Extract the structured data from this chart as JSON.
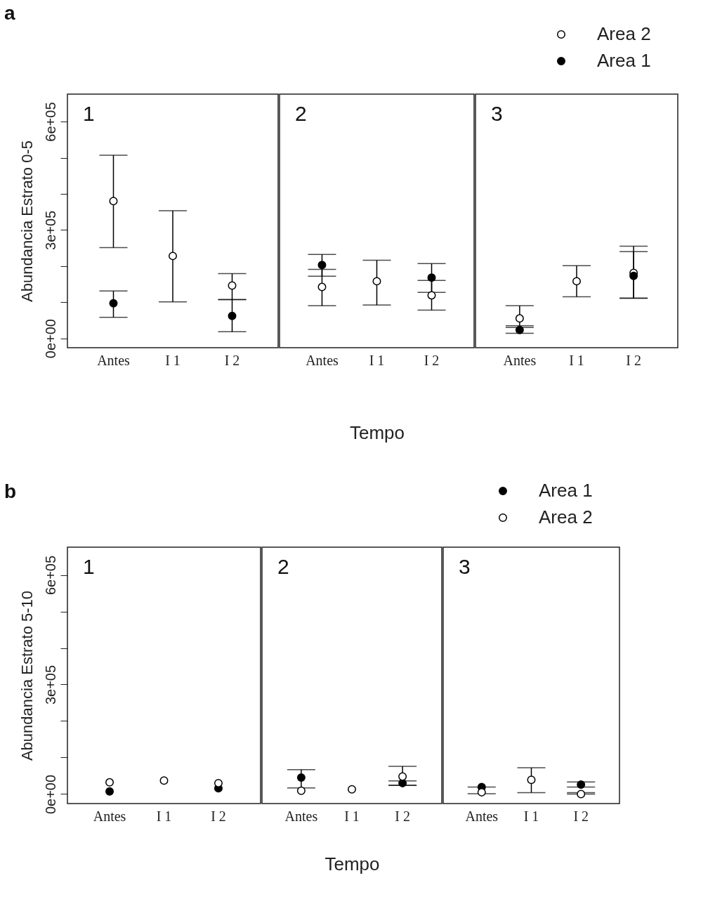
{
  "chart_data": [
    {
      "type": "scatter",
      "title": "1",
      "annotations": [
        "a"
      ],
      "ylabel": "Abundancia Estrato 0-5",
      "categories": [
        "Antes",
        "I 1",
        "I 2"
      ],
      "marker": "circle",
      "ylim": [
        -26000,
        676000
      ],
      "yticks": [
        {
          "value": 0,
          "label": "0e+00"
        },
        {
          "value": 100000,
          "label": null
        },
        {
          "value": 200000,
          "label": null
        },
        {
          "value": 300000,
          "label": "3e+05"
        },
        {
          "value": 400000,
          "label": null
        },
        {
          "value": 500000,
          "label": null
        },
        {
          "value": 600000,
          "label": "6e+05"
        }
      ],
      "series": [
        {
          "color": "#ffffff",
          "values": [
            380000,
            228000,
            146000
          ],
          "errors": [
            [
              251000,
              507000
            ],
            [
              101000,
              353000
            ],
            [
              107000,
              179000
            ]
          ]
        },
        {
          "color": "#000000",
          "values": [
            97000,
            null,
            62000
          ],
          "errors": [
            [
              58000,
              131000
            ],
            null,
            [
              18000,
              107000
            ]
          ]
        }
      ]
    },
    {
      "type": "scatter",
      "title": "2",
      "xlabel": "Tempo",
      "categories": [
        "Antes",
        "I 1",
        "I 2"
      ],
      "marker": "circle",
      "ylim": [
        -26000,
        676000
      ],
      "tick_labels": "x",
      "series": [
        {
          "color": "#ffffff",
          "values": [
            142000,
            158000,
            119000
          ],
          "errors": [
            [
              90000,
              191000
            ],
            [
              92000,
              216000
            ],
            [
              78000,
              160000
            ]
          ]
        },
        {
          "color": "#000000",
          "values": [
            203000,
            null,
            168000
          ],
          "errors": [
            [
              172000,
              232000
            ],
            null,
            [
              127000,
              207000
            ]
          ]
        }
      ]
    },
    {
      "type": "scatter",
      "title": "3",
      "categories": [
        "Antes",
        "I 1",
        "I 2"
      ],
      "marker": "circle",
      "ylim": [
        -26000,
        676000
      ],
      "tick_labels": "x",
      "legend": "top right",
      "series": [
        {
          "name": "Area 2",
          "color": "#ffffff",
          "values": [
            55000,
            158000,
            181000
          ],
          "errors": [
            [
              35000,
              90000
            ],
            [
              115000,
              201000
            ],
            [
              111000,
              255000
            ]
          ]
        },
        {
          "name": "Area 1",
          "color": "#000000",
          "values": [
            23000,
            null,
            173000
          ],
          "errors": [
            [
              14000,
              30000
            ],
            null,
            [
              111000,
              240000
            ]
          ]
        }
      ]
    },
    {
      "type": "scatter",
      "title": "1",
      "annotations": [
        "b"
      ],
      "ylabel": "Abundancia Estrato 5-10",
      "categories": [
        "Antes",
        "I 1",
        "I 2"
      ],
      "marker": "circle",
      "ylim": [
        -26000,
        676000
      ],
      "yticks": [
        {
          "value": 0,
          "label": "0e+00"
        },
        {
          "value": 100000,
          "label": null
        },
        {
          "value": 200000,
          "label": null
        },
        {
          "value": 300000,
          "label": "3e+05"
        },
        {
          "value": 400000,
          "label": null
        },
        {
          "value": 500000,
          "label": null
        },
        {
          "value": 600000,
          "label": "6e+05"
        }
      ],
      "series": [
        {
          "color": "#000000",
          "values": [
            7000,
            null,
            16000
          ]
        },
        {
          "color": "#ffffff",
          "values": [
            32000,
            37000,
            30000
          ],
          "errors": [
            null,
            null,
            null
          ]
        }
      ]
    },
    {
      "type": "scatter",
      "title": "2",
      "xlabel": "Tempo",
      "categories": [
        "Antes",
        "I 1",
        "I 2"
      ],
      "marker": "circle",
      "ylim": [
        -26000,
        676000
      ],
      "tick_labels": "x",
      "series": [
        {
          "color": "#000000",
          "values": [
            45000,
            null,
            30000
          ],
          "errors": [
            [
              17000,
              67000
            ],
            null,
            [
              24000,
              36000
            ]
          ]
        },
        {
          "color": "#ffffff",
          "values": [
            9000,
            13000,
            48000
          ],
          "errors": [
            null,
            null,
            [
              24000,
              76000
            ]
          ]
        }
      ]
    },
    {
      "type": "scatter",
      "title": "3",
      "categories": [
        "Antes",
        "I 1",
        "I 2"
      ],
      "marker": "circle",
      "ylim": [
        -26000,
        676000
      ],
      "tick_labels": "x",
      "legend": "top right",
      "series": [
        {
          "name": "Area 1",
          "color": "#000000",
          "values": [
            19000,
            null,
            26000
          ],
          "errors": [
            null,
            null,
            [
              19000,
              33000
            ]
          ]
        },
        {
          "name": "Area 2",
          "color": "#ffffff",
          "values": [
            5000,
            39000,
            0
          ],
          "errors": [
            [
              1000,
              19000
            ],
            [
              4000,
              72000
            ],
            [
              0,
              4000
            ]
          ]
        }
      ]
    }
  ]
}
